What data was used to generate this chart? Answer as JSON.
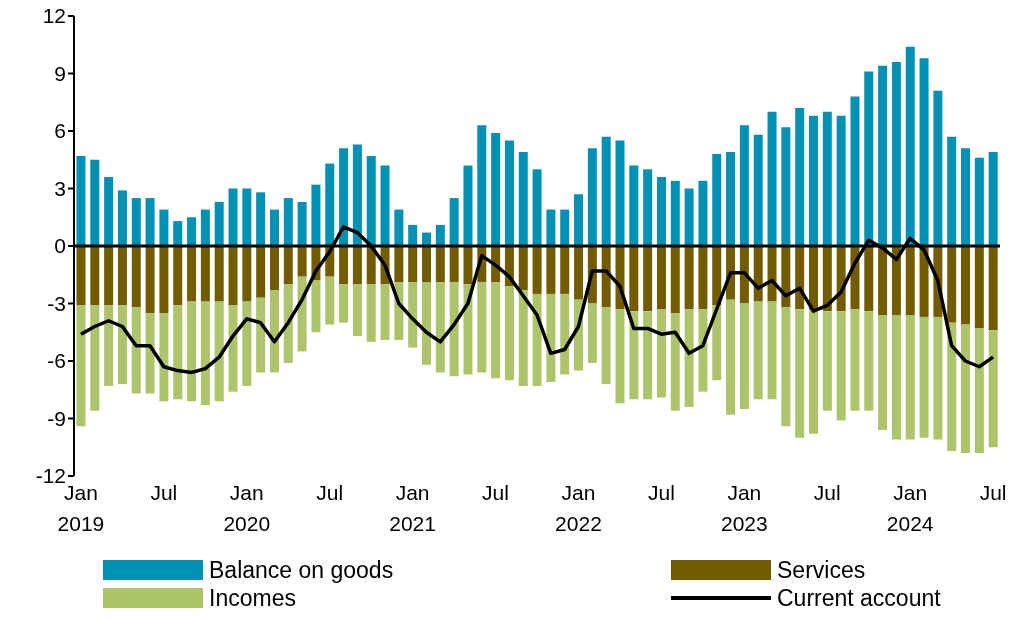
{
  "chart_data": {
    "type": "bar",
    "stacked": true,
    "categories": [
      "Jan 2019",
      null,
      null,
      null,
      null,
      null,
      "Jul",
      null,
      null,
      null,
      null,
      null,
      "Jan 2020",
      null,
      null,
      null,
      null,
      null,
      "Jul",
      null,
      null,
      null,
      null,
      null,
      "Jan 2021",
      null,
      null,
      null,
      null,
      null,
      "Jul",
      null,
      null,
      null,
      null,
      null,
      "Jan 2022",
      null,
      null,
      null,
      null,
      null,
      "Jul",
      null,
      null,
      null,
      null,
      null,
      "Jan 2023",
      null,
      null,
      null,
      null,
      null,
      "Jul",
      null,
      null,
      null,
      null,
      null,
      "Jan 2024",
      null,
      null,
      null,
      null,
      null,
      "Jul"
    ],
    "series": [
      {
        "name": "Balance on goods",
        "color": "#0091b5",
        "values": [
          4.7,
          4.5,
          3.6,
          2.9,
          2.5,
          2.5,
          1.9,
          1.3,
          1.5,
          1.9,
          2.3,
          3.0,
          3.0,
          2.8,
          1.9,
          2.5,
          2.3,
          3.2,
          4.3,
          5.1,
          5.3,
          4.7,
          4.2,
          1.9,
          1.1,
          0.7,
          1.1,
          2.5,
          4.2,
          6.3,
          5.9,
          5.5,
          4.9,
          4.0,
          1.9,
          1.9,
          2.7,
          5.1,
          5.7,
          5.5,
          4.2,
          4.0,
          3.6,
          3.4,
          3.0,
          3.4,
          4.8,
          4.9,
          6.3,
          5.8,
          7.0,
          6.2,
          7.2,
          6.8,
          7.0,
          6.8,
          7.8,
          9.1,
          9.4,
          9.6,
          10.4,
          9.8,
          8.1,
          5.7,
          5.1,
          4.6,
          4.9
        ]
      },
      {
        "name": "Services",
        "color": "#735c00",
        "values": [
          -3.1,
          -3.1,
          -3.1,
          -3.1,
          -3.2,
          -3.5,
          -3.5,
          -3.1,
          -2.9,
          -2.9,
          -2.9,
          -3.1,
          -2.9,
          -2.7,
          -2.3,
          -2.0,
          -1.6,
          -1.8,
          -1.6,
          -2.0,
          -2.0,
          -2.0,
          -2.0,
          -1.9,
          -1.9,
          -1.9,
          -1.9,
          -1.9,
          -2.0,
          -1.9,
          -1.9,
          -2.1,
          -2.3,
          -2.5,
          -2.5,
          -2.5,
          -2.8,
          -3.0,
          -3.2,
          -3.3,
          -3.4,
          -3.4,
          -3.3,
          -3.5,
          -3.3,
          -3.3,
          -3.1,
          -2.8,
          -3.0,
          -2.9,
          -2.9,
          -3.2,
          -3.3,
          -3.3,
          -3.4,
          -3.4,
          -3.3,
          -3.4,
          -3.6,
          -3.6,
          -3.6,
          -3.7,
          -3.7,
          -4.0,
          -4.1,
          -4.3,
          -4.4
        ]
      },
      {
        "name": "Incomes",
        "color": "#adc46a",
        "values": [
          -6.3,
          -5.5,
          -4.2,
          -4.1,
          -4.5,
          -4.2,
          -4.6,
          -4.9,
          -5.2,
          -5.4,
          -5.2,
          -4.5,
          -4.4,
          -3.9,
          -4.3,
          -4.1,
          -3.9,
          -2.7,
          -2.5,
          -2.0,
          -2.7,
          -3.0,
          -2.9,
          -3.0,
          -3.4,
          -4.3,
          -4.7,
          -4.9,
          -4.7,
          -4.7,
          -5.0,
          -4.9,
          -5.0,
          -4.8,
          -4.6,
          -4.2,
          -3.7,
          -3.1,
          -4.0,
          -4.9,
          -4.6,
          -4.6,
          -4.6,
          -5.1,
          -5.1,
          -4.3,
          -3.9,
          -6.0,
          -5.5,
          -5.1,
          -5.1,
          -6.2,
          -6.7,
          -6.5,
          -5.2,
          -5.7,
          -5.3,
          -5.2,
          -6.0,
          -6.5,
          -6.5,
          -6.3,
          -6.4,
          -6.7,
          -6.7,
          -6.5,
          -6.1
        ]
      },
      {
        "name": "Current account",
        "type": "line",
        "color": "#000000",
        "values": [
          -4.6,
          -4.2,
          -3.9,
          -4.2,
          -5.2,
          -5.2,
          -6.3,
          -6.5,
          -6.6,
          -6.4,
          -5.8,
          -4.7,
          -3.8,
          -4.0,
          -5.0,
          -4.0,
          -2.8,
          -1.3,
          -0.3,
          1.0,
          0.7,
          0.0,
          -1.0,
          -3.0,
          -3.8,
          -4.5,
          -5.0,
          -4.1,
          -3.0,
          -0.5,
          -1.0,
          -1.6,
          -2.6,
          -3.6,
          -5.6,
          -5.4,
          -4.2,
          -1.3,
          -1.3,
          -2.1,
          -4.3,
          -4.3,
          -4.6,
          -4.5,
          -5.6,
          -5.2,
          -3.3,
          -1.4,
          -1.4,
          -2.2,
          -1.8,
          -2.6,
          -2.2,
          -3.4,
          -3.1,
          -2.4,
          -0.9,
          0.3,
          -0.1,
          -0.7,
          0.4,
          -0.2,
          -1.8,
          -5.2,
          -6.0,
          -6.3,
          -5.8
        ]
      }
    ],
    "ylim": [
      -12,
      12
    ],
    "yticks": [
      -12,
      -9,
      -6,
      -3,
      0,
      3,
      6,
      9,
      12
    ],
    "legend": "bottom"
  }
}
